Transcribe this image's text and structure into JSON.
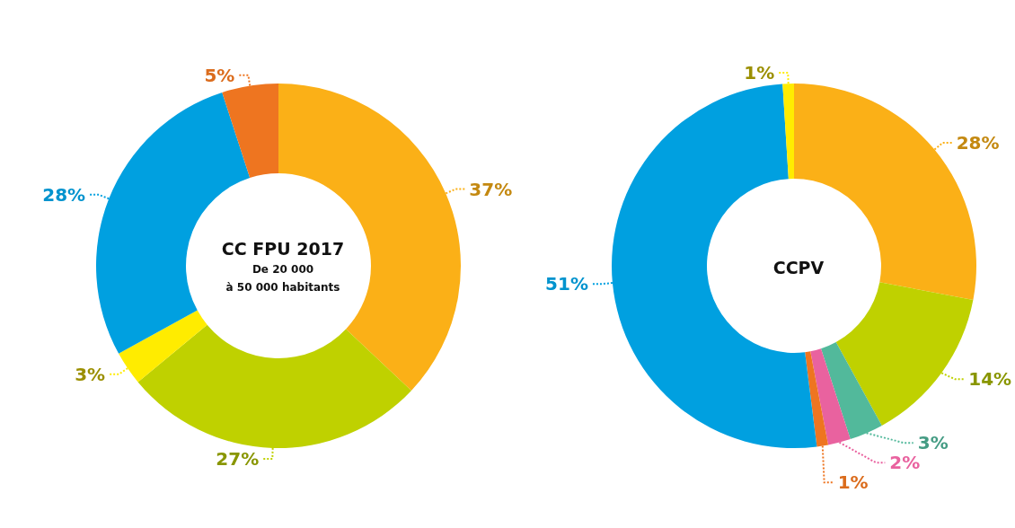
{
  "chart_data": [
    {
      "type": "donut",
      "title": "CC FPU 2017",
      "subtitle": "De 20 000\nà 50 000 habitants",
      "categories": [
        null,
        null,
        null,
        null,
        null
      ],
      "values": [
        37,
        27,
        3,
        28,
        5
      ],
      "value_labels": [
        "37%",
        "27%",
        "3%",
        "28%",
        "5%"
      ],
      "colors": [
        "#fbb017",
        "#bfd100",
        "#ffec00",
        "#00a0e0",
        "#ee7520"
      ]
    },
    {
      "type": "donut",
      "title": "CCPV",
      "categories": [
        null,
        null,
        null,
        null,
        null,
        null,
        null
      ],
      "values": [
        28,
        14,
        3,
        2,
        1,
        51,
        1
      ],
      "value_labels": [
        "28%",
        "14%",
        "3%",
        "2%",
        "1%",
        "51%",
        "1%"
      ],
      "colors": [
        "#fbb017",
        "#bfd100",
        "#52b99b",
        "#e9629f",
        "#ee7520",
        "#00a0e0",
        "#ffec00"
      ]
    }
  ]
}
